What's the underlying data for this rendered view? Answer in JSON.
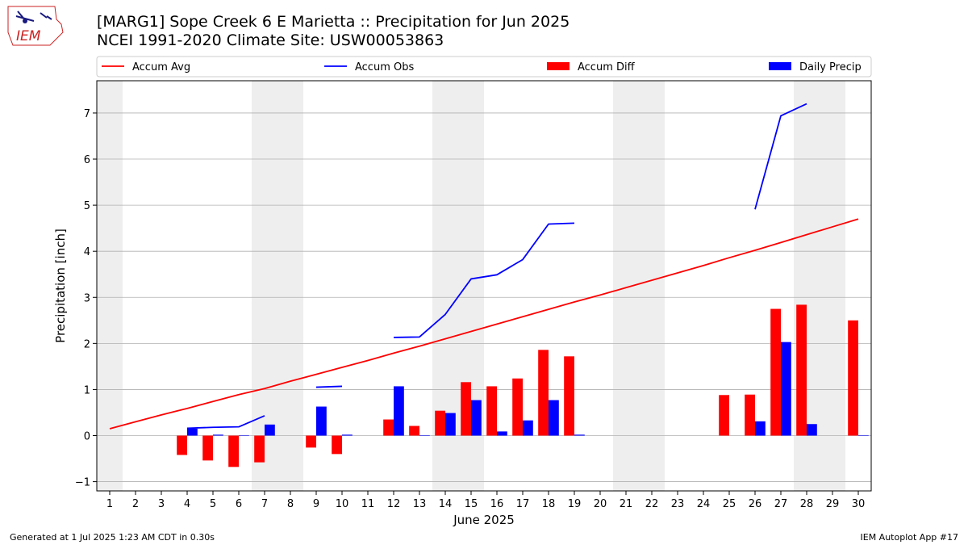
{
  "title": "[MARG1] Sope Creek 6 E Marietta :: Precipitation for Jun 2025",
  "subtitle": "NCEI 1991-2020 Climate Site: USW00053863",
  "footer": {
    "generated": "Generated at 1 Jul 2025 1:23 AM CDT in 0.30s",
    "app": "IEM Autoplot App #17"
  },
  "logo": {
    "text": "IEM"
  },
  "colors": {
    "accum_avg": "#ff0000",
    "accum_obs": "#0000ff",
    "accum_diff": "#ff0000",
    "daily_precip": "#0000ff",
    "weekend_shade": "#eeeeee",
    "grid": "#b0b0b0"
  },
  "chart_data": {
    "type": "bar",
    "xlabel": "June 2025",
    "ylabel": "Precipitation [inch]",
    "xlim": [
      0.5,
      30.5
    ],
    "ylim": [
      -1.2,
      7.7
    ],
    "yticks": [
      -1,
      0,
      1,
      2,
      3,
      4,
      5,
      6,
      7
    ],
    "days": [
      1,
      2,
      3,
      4,
      5,
      6,
      7,
      8,
      9,
      10,
      11,
      12,
      13,
      14,
      15,
      16,
      17,
      18,
      19,
      20,
      21,
      22,
      23,
      24,
      25,
      26,
      27,
      28,
      29,
      30
    ],
    "weekend_days": [
      1,
      7,
      8,
      14,
      15,
      21,
      22,
      28,
      29
    ],
    "grid": true,
    "legend": [
      {
        "label": "Accum Avg",
        "kind": "line",
        "color": "#ff0000"
      },
      {
        "label": "Accum Obs",
        "kind": "line",
        "color": "#0000ff"
      },
      {
        "label": "Accum Diff",
        "kind": "bar",
        "color": "#ff0000"
      },
      {
        "label": "Daily Precip",
        "kind": "bar",
        "color": "#0000ff"
      }
    ],
    "series": [
      {
        "name": "Accum Avg",
        "type": "line",
        "values": [
          0.15,
          0.3,
          0.45,
          0.59,
          0.74,
          0.89,
          1.02,
          1.18,
          1.33,
          1.48,
          1.63,
          1.79,
          1.94,
          2.1,
          2.26,
          2.42,
          2.58,
          2.74,
          2.9,
          3.05,
          3.21,
          3.37,
          3.53,
          3.69,
          3.86,
          4.02,
          4.19,
          4.36,
          4.53,
          4.7
        ]
      },
      {
        "name": "Accum Obs",
        "type": "line",
        "values": [
          null,
          null,
          null,
          0.16,
          0.18,
          0.19,
          0.43,
          null,
          1.05,
          1.07,
          null,
          2.13,
          2.14,
          2.63,
          3.4,
          3.49,
          3.82,
          4.59,
          4.61,
          null,
          null,
          null,
          null,
          null,
          null,
          4.91,
          6.94,
          7.2,
          null,
          null
        ]
      },
      {
        "name": "Accum Diff",
        "type": "bar",
        "values": [
          null,
          null,
          null,
          -0.42,
          -0.54,
          -0.68,
          -0.58,
          null,
          -0.26,
          -0.4,
          null,
          0.35,
          0.21,
          0.54,
          1.16,
          1.07,
          1.24,
          1.86,
          1.72,
          null,
          null,
          null,
          null,
          null,
          0.88,
          0.89,
          2.75,
          2.84,
          null,
          2.5
        ]
      },
      {
        "name": "Daily Precip",
        "type": "bar",
        "values": [
          null,
          null,
          null,
          0.15,
          0.02,
          0.01,
          0.24,
          null,
          0.63,
          0.02,
          null,
          1.07,
          0.01,
          0.49,
          0.77,
          0.09,
          0.33,
          0.77,
          0.02,
          null,
          null,
          null,
          null,
          null,
          null,
          0.31,
          2.03,
          0.25,
          null,
          0.01
        ]
      }
    ]
  }
}
